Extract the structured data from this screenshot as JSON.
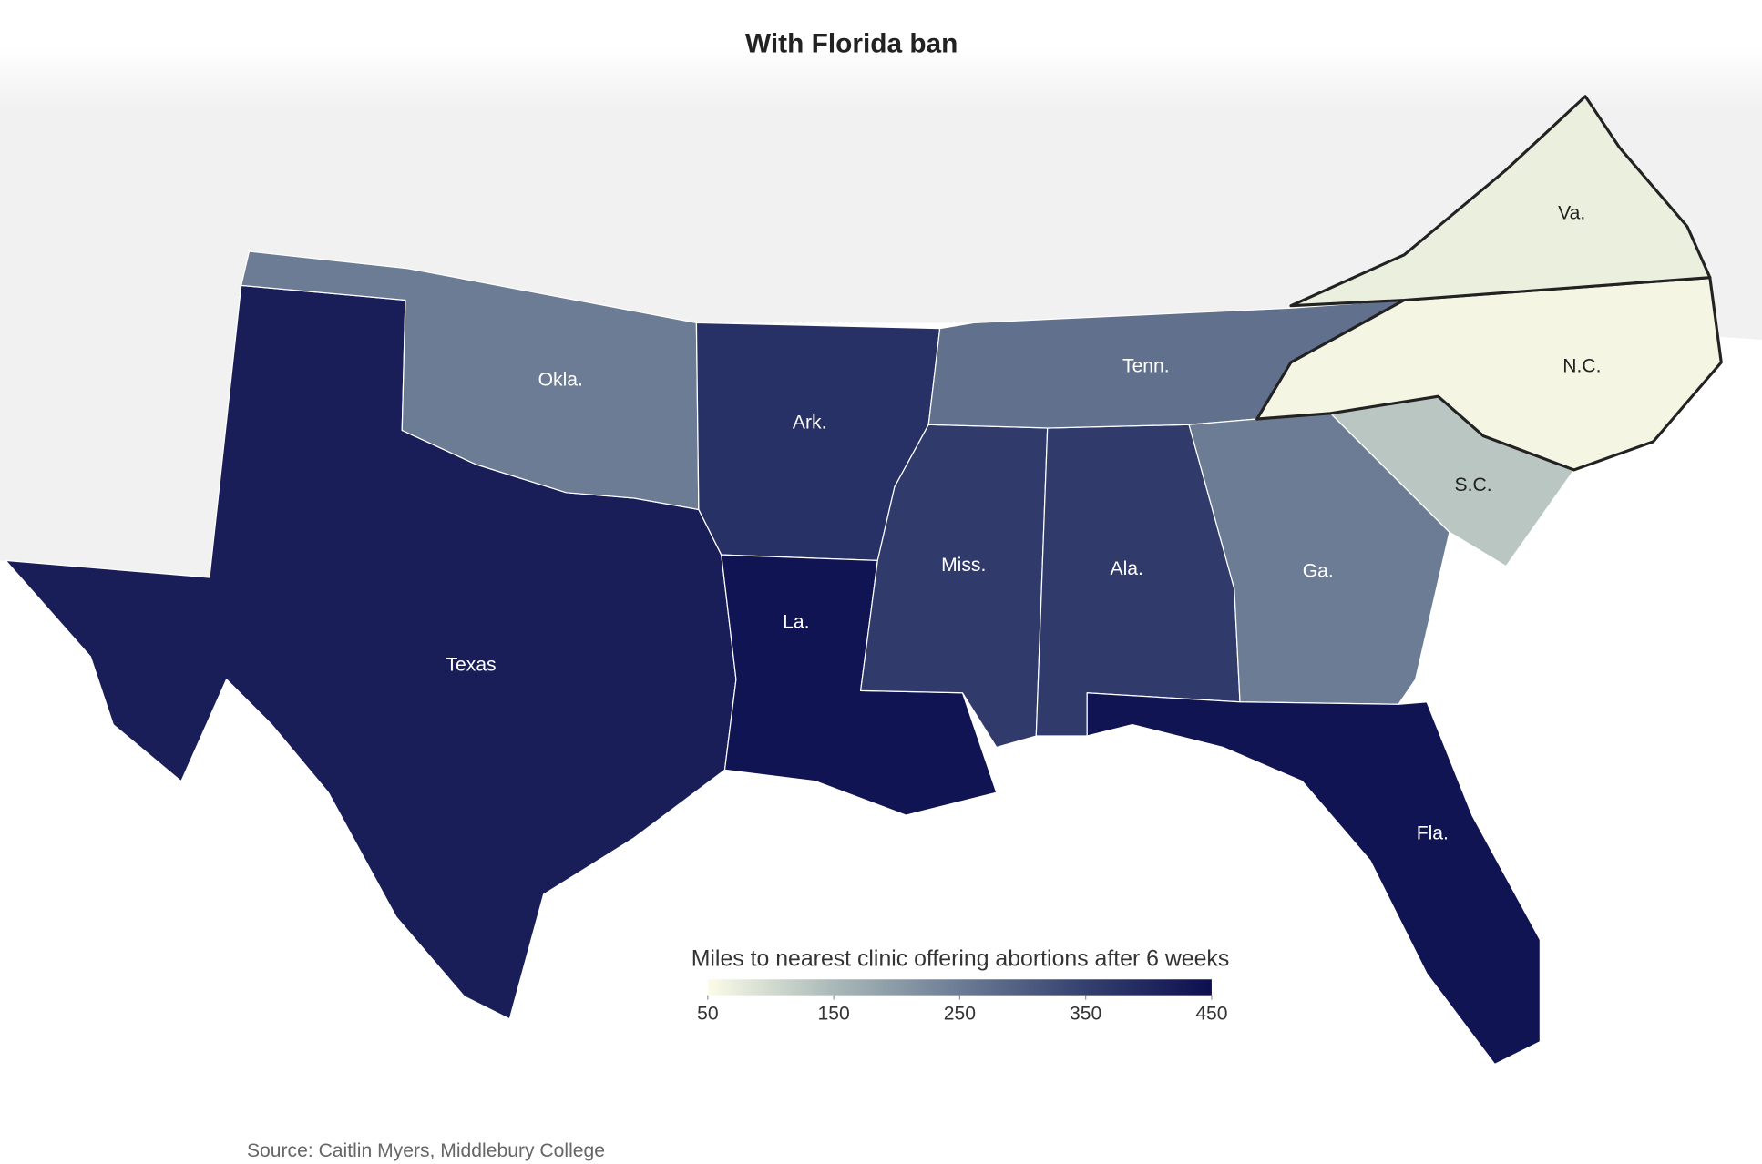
{
  "chart_data": {
    "type": "choropleth",
    "title": "With Florida ban",
    "regions": [
      {
        "label": "Texas",
        "value": 420
      },
      {
        "label": "Okla.",
        "value": 250
      },
      {
        "label": "Ark.",
        "value": 380
      },
      {
        "label": "La.",
        "value": 440
      },
      {
        "label": "Miss.",
        "value": 360
      },
      {
        "label": "Ala.",
        "value": 360
      },
      {
        "label": "Tenn.",
        "value": 270
      },
      {
        "label": "Ga.",
        "value": 250
      },
      {
        "label": "S.C.",
        "value": 130
      },
      {
        "label": "N.C.",
        "value": 60
      },
      {
        "label": "Va.",
        "value": 70
      },
      {
        "label": "Fla.",
        "value": 440
      }
    ],
    "legend": {
      "title": "Miles to nearest clinic offering abortions after 6 weeks",
      "lim": [
        50,
        450
      ],
      "ticks": [
        50,
        150,
        250,
        350,
        450
      ],
      "colors": [
        "#fcfce8",
        "#a9b9b8",
        "#6c7c95",
        "#34406f",
        "#0d0f4f"
      ]
    },
    "source": "Source: Caitlin Myers, Middlebury College"
  }
}
